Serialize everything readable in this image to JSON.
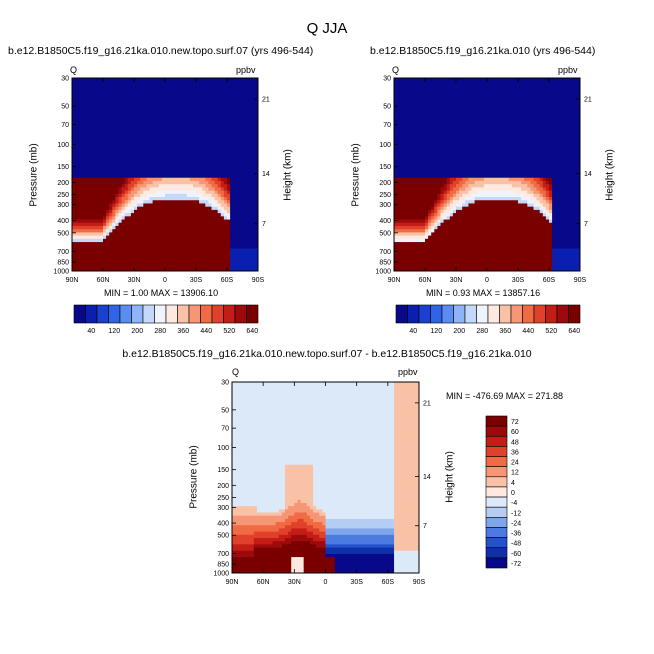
{
  "figure": {
    "title": "Q JJA"
  },
  "panels": [
    {
      "id": "p1",
      "title": "b.e12.B1850C5.f19_g16.21ka.010.new.topo.surf.07 (yrs 496-544)",
      "left_label": "Q",
      "right_label": "ppbv",
      "ylabel": "Pressure (mb)",
      "y2label": "Height (km)",
      "minmax": "MIN =   1.00   MAX = 13906.10"
    },
    {
      "id": "p2",
      "title": "b.e12.B1850C5.f19_g16.21ka.010 (yrs 496-544)",
      "left_label": "Q",
      "right_label": "ppbv",
      "ylabel": "Pressure (mb)",
      "y2label": "Height (km)",
      "minmax": "MIN =   0.93   MAX = 13857.16"
    },
    {
      "id": "p3",
      "title": "b.e12.B1850C5.f19_g16.21ka.010.new.topo.surf.07 - b.e12.B1850C5.f19_g16.21ka.010",
      "left_label": "Q",
      "right_label": "ppbv",
      "ylabel": "Pressure (mb)",
      "y2label": "Height (km)",
      "minmax": "MIN = -476.69   MAX = 271.88"
    }
  ],
  "chart_data": [
    {
      "type": "heatmap",
      "panel": "p1",
      "x_ticks": [
        "90N",
        "60N",
        "30N",
        "0",
        "30S",
        "60S",
        "90S"
      ],
      "x_values": [
        90,
        60,
        30,
        0,
        -30,
        -60,
        -90
      ],
      "y_ticks": [
        30,
        50,
        70,
        100,
        150,
        200,
        250,
        300,
        400,
        500,
        700,
        850,
        1000
      ],
      "y_log": true,
      "ylim": [
        1000,
        30
      ],
      "y2_ticks": [
        "21",
        "14",
        "7"
      ],
      "y2_values": [
        21,
        14,
        7
      ],
      "colorbar": {
        "labels": [
          "40",
          "120",
          "200",
          "280",
          "360",
          "440",
          "520",
          "640"
        ],
        "colors": [
          "#08088a",
          "#0a1fb0",
          "#1a40d0",
          "#2f64e6",
          "#5a8cf2",
          "#8fb3f8",
          "#c4d8fb",
          "#eef3fc",
          "#fde9df",
          "#f9c2a6",
          "#f69674",
          "#f06a44",
          "#e0412a",
          "#c41c17",
          "#9e0a0b",
          "#7a0000"
        ]
      }
    },
    {
      "type": "heatmap",
      "panel": "p2",
      "x_ticks": [
        "90N",
        "60N",
        "30N",
        "0",
        "30S",
        "60S",
        "90S"
      ],
      "x_values": [
        90,
        60,
        30,
        0,
        -30,
        -60,
        -90
      ],
      "y_ticks": [
        30,
        50,
        70,
        100,
        150,
        200,
        250,
        300,
        400,
        500,
        700,
        850,
        1000
      ],
      "y_log": true,
      "ylim": [
        1000,
        30
      ],
      "y2_ticks": [
        "21",
        "14",
        "7"
      ],
      "y2_values": [
        21,
        14,
        7
      ],
      "colorbar": {
        "labels": [
          "40",
          "120",
          "200",
          "280",
          "360",
          "440",
          "520",
          "640"
        ],
        "colors": [
          "#08088a",
          "#0a1fb0",
          "#1a40d0",
          "#2f64e6",
          "#5a8cf2",
          "#8fb3f8",
          "#c4d8fb",
          "#eef3fc",
          "#fde9df",
          "#f9c2a6",
          "#f69674",
          "#f06a44",
          "#e0412a",
          "#c41c17",
          "#9e0a0b",
          "#7a0000"
        ]
      }
    },
    {
      "type": "heatmap",
      "panel": "p3",
      "x_ticks": [
        "90N",
        "60N",
        "30N",
        "0",
        "30S",
        "60S",
        "90S"
      ],
      "x_values": [
        90,
        60,
        30,
        0,
        -30,
        -60,
        -90
      ],
      "y_ticks": [
        30,
        50,
        70,
        100,
        150,
        200,
        250,
        300,
        400,
        500,
        700,
        850,
        1000
      ],
      "y_log": true,
      "ylim": [
        1000,
        30
      ],
      "y2_ticks": [
        "21",
        "14",
        "7"
      ],
      "y2_values": [
        21,
        14,
        7
      ],
      "colorbar": {
        "labels": [
          "72",
          "60",
          "48",
          "36",
          "24",
          "12",
          "4",
          "0",
          "-4",
          "-12",
          "-24",
          "-36",
          "-48",
          "-60",
          "-72"
        ],
        "colors": [
          "#7a0000",
          "#9e0a0b",
          "#c41c17",
          "#e0412a",
          "#f06a44",
          "#f69674",
          "#f9c2a6",
          "#fde9df",
          "#dce9f9",
          "#b3cdf3",
          "#7ea6ea",
          "#4b7be0",
          "#2452cc",
          "#1030a8",
          "#08088a"
        ]
      }
    }
  ]
}
